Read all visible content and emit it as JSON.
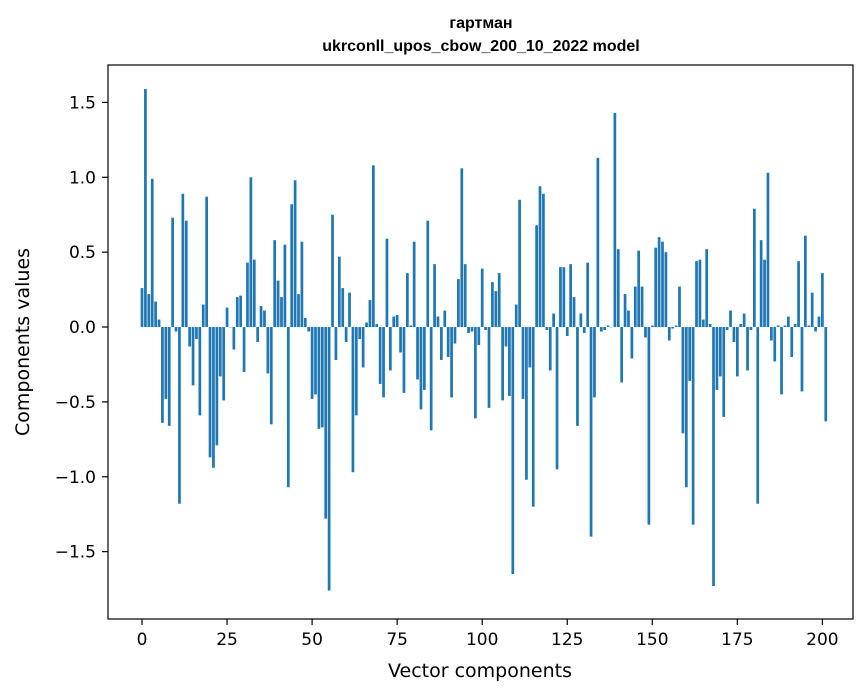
{
  "chart_data": {
    "type": "bar",
    "title_line1": "гартман",
    "title_line2": "ukrconll_upos_cbow_200_10_2022 model",
    "xlabel": "Vector components",
    "ylabel": "Components values",
    "xlim": [
      -10,
      209
    ],
    "ylim": [
      -1.95,
      1.75
    ],
    "xticks": [
      0,
      25,
      50,
      75,
      100,
      125,
      150,
      175,
      200
    ],
    "xtick_labels": [
      "0",
      "25",
      "50",
      "75",
      "100",
      "125",
      "150",
      "175",
      "200"
    ],
    "yticks": [
      -1.5,
      -1.0,
      -0.5,
      0.0,
      0.5,
      1.0,
      1.5
    ],
    "ytick_labels": [
      "−1.5",
      "−1.0",
      "−0.5",
      "0.0",
      "0.5",
      "1.0",
      "1.5"
    ],
    "grid": false,
    "bar_color": "#1f77b4",
    "values": [
      0.26,
      1.59,
      0.22,
      0.99,
      0.17,
      0.05,
      -0.64,
      -0.48,
      -0.66,
      0.73,
      -0.03,
      -1.18,
      0.89,
      0.71,
      -0.13,
      -0.39,
      -0.08,
      -0.59,
      0.15,
      0.87,
      -0.87,
      -0.94,
      -0.79,
      -0.33,
      -0.49,
      0.13,
      0.0,
      -0.15,
      0.2,
      0.21,
      -0.3,
      0.43,
      1.0,
      0.45,
      -0.1,
      0.14,
      0.11,
      -0.31,
      -0.65,
      0.58,
      0.31,
      0.2,
      0.55,
      -1.07,
      0.82,
      0.98,
      0.22,
      0.57,
      0.06,
      -0.03,
      -0.48,
      -0.45,
      -0.68,
      -0.67,
      -1.28,
      -1.76,
      0.75,
      -0.22,
      0.47,
      0.26,
      -0.1,
      0.23,
      -0.97,
      -0.59,
      -0.08,
      -0.27,
      0.03,
      0.18,
      1.08,
      0.02,
      -0.38,
      -0.47,
      0.59,
      -0.29,
      0.07,
      0.08,
      -0.17,
      -0.44,
      0.36,
      0.01,
      0.57,
      -0.35,
      -0.55,
      -0.42,
      0.71,
      -0.69,
      0.42,
      0.07,
      -0.22,
      0.11,
      -0.2,
      -0.47,
      -0.11,
      0.32,
      1.06,
      0.42,
      -0.04,
      -0.03,
      -0.61,
      -0.12,
      0.39,
      -0.02,
      -0.54,
      0.3,
      0.24,
      0.36,
      -0.49,
      -0.13,
      -0.46,
      -1.65,
      0.15,
      0.85,
      -0.48,
      -1.02,
      -0.27,
      -1.2,
      0.68,
      0.94,
      0.89,
      -0.02,
      -0.29,
      0.09,
      -0.95,
      0.4,
      0.4,
      -0.06,
      0.42,
      0.2,
      -0.66,
      0.09,
      -0.04,
      0.43,
      -1.4,
      -0.47,
      1.13,
      -0.03,
      -0.02,
      0.01,
      0.0,
      1.43,
      0.52,
      -0.37,
      0.22,
      0.11,
      -0.21,
      0.27,
      0.51,
      0.27,
      -0.07,
      -1.32,
      0.01,
      0.53,
      0.6,
      0.57,
      0.5,
      -0.09,
      -0.01,
      0.01,
      0.27,
      -0.71,
      -1.07,
      -0.36,
      -1.32,
      0.44,
      0.45,
      0.05,
      0.52,
      0.02,
      -1.73,
      -0.42,
      -0.33,
      -0.6,
      -0.02,
      0.11,
      -0.1,
      -0.33,
      0.02,
      0.09,
      -0.29,
      -0.02,
      0.79,
      -1.18,
      0.58,
      0.45,
      1.03,
      -0.09,
      -0.23,
      0.01,
      -0.45,
      0.01,
      0.07,
      -0.2,
      0.02,
      0.44,
      -0.43,
      0.61,
      0.01,
      0.23,
      -0.03,
      0.07,
      0.36,
      -0.63
    ]
  }
}
